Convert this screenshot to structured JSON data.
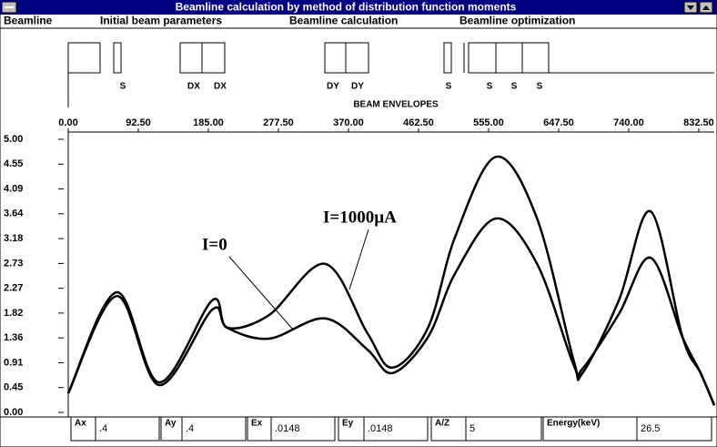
{
  "window": {
    "title": "Beamline calculation by method  of distribution function moments",
    "menu": [
      "Beamline",
      "Initial beam parameters",
      "Beamline calculation",
      "Beamline optimization"
    ]
  },
  "beamline": {
    "labels": [
      "S",
      "DX",
      "DX",
      "DY",
      "DY",
      "S",
      "S",
      "S",
      "S"
    ],
    "caption": "BEAM ENVELOPES"
  },
  "chart_data": {
    "type": "line",
    "x": [
      0,
      64,
      120,
      190,
      210,
      265,
      339,
      395,
      428,
      475,
      511,
      565,
      619,
      667,
      679,
      727,
      769,
      811,
      835,
      853
    ],
    "series": [
      {
        "name": "I=1000µA",
        "color": "#000000",
        "values": [
          0.35,
          2.2,
          0.55,
          2.05,
          1.55,
          1.78,
          2.72,
          1.45,
          0.82,
          1.55,
          3.22,
          4.68,
          3.55,
          0.97,
          0.72,
          2.05,
          3.68,
          1.38,
          0.72,
          0.13
        ]
      },
      {
        "name": "I=0",
        "color": "#000000",
        "values": [
          0.35,
          2.13,
          0.5,
          1.88,
          1.55,
          1.35,
          1.72,
          1.15,
          0.72,
          1.38,
          2.55,
          3.55,
          2.72,
          0.88,
          0.8,
          1.8,
          2.83,
          1.38,
          0.72,
          0.13
        ]
      }
    ],
    "xlim": [
      0,
      853
    ],
    "xticks": [
      {
        "value": 0,
        "label": "0.00"
      },
      {
        "value": 92.5,
        "label": "92.50"
      },
      {
        "value": 185,
        "label": "185.00"
      },
      {
        "value": 277.5,
        "label": "277.50"
      },
      {
        "value": 370,
        "label": "370.00"
      },
      {
        "value": 462.5,
        "label": "462.50"
      },
      {
        "value": 555,
        "label": "555.00"
      },
      {
        "value": 647.5,
        "label": "647.50"
      },
      {
        "value": 740,
        "label": "740.00"
      },
      {
        "value": 832.5,
        "label": "832.50"
      }
    ],
    "ylim": [
      0,
      5
    ],
    "yticks": [
      {
        "value": 0,
        "label": "0.00"
      },
      {
        "value": 0.4545,
        "label": "0.45"
      },
      {
        "value": 0.9091,
        "label": "0.91"
      },
      {
        "value": 1.3636,
        "label": "1.36"
      },
      {
        "value": 1.8182,
        "label": "1.82"
      },
      {
        "value": 2.2727,
        "label": "2.27"
      },
      {
        "value": 2.7273,
        "label": "2.73"
      },
      {
        "value": 3.1818,
        "label": "3.18"
      },
      {
        "value": 3.6364,
        "label": "3.64"
      },
      {
        "value": 4.0909,
        "label": "4.09"
      },
      {
        "value": 4.5455,
        "label": "4.55"
      },
      {
        "value": 5,
        "label": "5.00"
      }
    ]
  },
  "parameters": [
    {
      "label": "Ax",
      "value": ".4"
    },
    {
      "label": "Ay",
      "value": ".4"
    },
    {
      "label": "Ex",
      "value": ".0148"
    },
    {
      "label": "Ey",
      "value": ".0148"
    },
    {
      "label": "A/Z",
      "value": "5"
    },
    {
      "label": "Energy(keV)",
      "value": "26.5"
    }
  ]
}
